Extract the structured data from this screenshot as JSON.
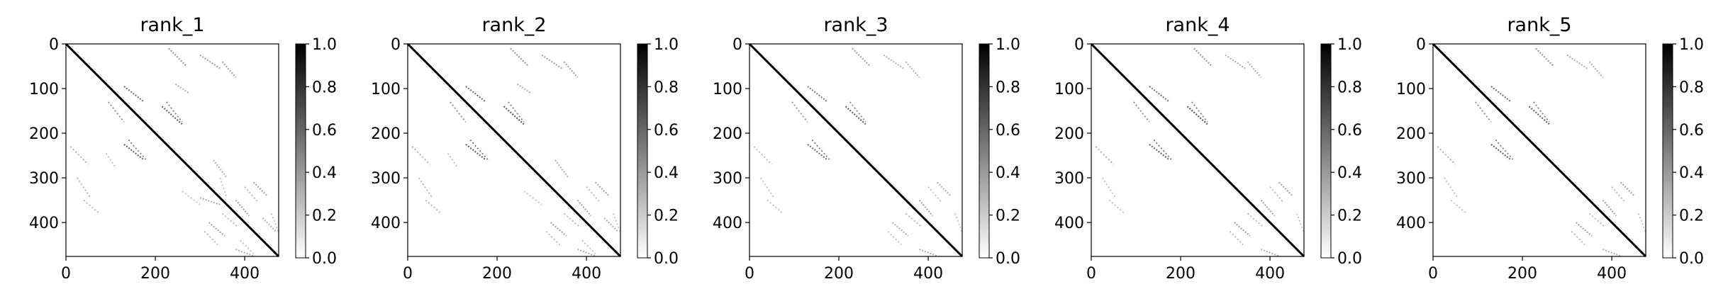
{
  "chart_data": [
    {
      "type": "heatmap",
      "title": "rank_1",
      "xlabel": "",
      "ylabel": "",
      "xlim": [
        0,
        476
      ],
      "ylim": [
        476,
        0
      ],
      "xticks": [
        0,
        200,
        400
      ],
      "yticks": [
        0,
        100,
        200,
        300,
        400
      ],
      "colorbar": {
        "ticks": [
          "0.0",
          "0.2",
          "0.4",
          "0.6",
          "0.8",
          "1.0"
        ],
        "range": [
          0,
          1
        ]
      },
      "structure": {
        "diagonal": [
          0,
          476
        ],
        "contacts": [
          {
            "from": [
              130,
              175
            ],
            "to": [
              95,
              130
            ],
            "v": 0.55
          },
          {
            "from": [
              215,
              260
            ],
            "to": [
              140,
              180
            ],
            "v": 0.6
          },
          {
            "from": [
              130,
              175
            ],
            "to": [
              225,
              260
            ],
            "v": 0.6
          },
          {
            "from": [
              230,
              270
            ],
            "to": [
              10,
              50
            ],
            "v": 0.4
          },
          {
            "from": [
              245,
              275
            ],
            "to": [
              90,
              110
            ],
            "v": 0.3
          },
          {
            "from": [
              300,
              345
            ],
            "to": [
              25,
              55
            ],
            "v": 0.35
          },
          {
            "from": [
              300,
              345
            ],
            "to": [
              345,
              360
            ],
            "v": 0.3
          },
          {
            "from": [
              350,
              380
            ],
            "to": [
              40,
              75
            ],
            "v": 0.35
          },
          {
            "from": [
              320,
              355
            ],
            "to": [
              400,
              430
            ],
            "v": 0.35
          },
          {
            "from": [
              330,
              360
            ],
            "to": [
              260,
              300
            ],
            "v": 0.3
          },
          {
            "from": [
              420,
              450
            ],
            "to": [
              310,
              340
            ],
            "v": 0.35
          },
          {
            "from": [
              440,
              470
            ],
            "to": [
              390,
              420
            ],
            "v": 0.3
          },
          {
            "from": [
              380,
              420
            ],
            "to": [
              460,
              475
            ],
            "v": 0.3
          },
          {
            "from": [
              380,
              410
            ],
            "to": [
              350,
              385
            ],
            "v": 0.35
          }
        ]
      }
    },
    {
      "type": "heatmap",
      "title": "rank_2",
      "xlabel": "",
      "ylabel": "",
      "xlim": [
        0,
        476
      ],
      "ylim": [
        476,
        0
      ],
      "xticks": [
        0,
        200,
        400
      ],
      "yticks": [
        0,
        100,
        200,
        300,
        400
      ],
      "colorbar": {
        "ticks": [
          "0.0",
          "0.2",
          "0.4",
          "0.6",
          "0.8",
          "1.0"
        ],
        "range": [
          0,
          1
        ]
      },
      "structure": {
        "diagonal": [
          0,
          476
        ],
        "contacts": [
          {
            "from": [
              130,
              175
            ],
            "to": [
              95,
              130
            ],
            "v": 0.55
          },
          {
            "from": [
              215,
              260
            ],
            "to": [
              140,
              180
            ],
            "v": 0.65
          },
          {
            "from": [
              130,
              175
            ],
            "to": [
              225,
              260
            ],
            "v": 0.6
          },
          {
            "from": [
              230,
              270
            ],
            "to": [
              10,
              50
            ],
            "v": 0.4
          },
          {
            "from": [
              245,
              275
            ],
            "to": [
              90,
              110
            ],
            "v": 0.3
          },
          {
            "from": [
              300,
              345
            ],
            "to": [
              25,
              55
            ],
            "v": 0.35
          },
          {
            "from": [
              350,
              380
            ],
            "to": [
              40,
              75
            ],
            "v": 0.35
          },
          {
            "from": [
              320,
              355
            ],
            "to": [
              400,
              430
            ],
            "v": 0.35
          },
          {
            "from": [
              330,
              360
            ],
            "to": [
              260,
              300
            ],
            "v": 0.3
          },
          {
            "from": [
              420,
              450
            ],
            "to": [
              310,
              340
            ],
            "v": 0.35
          },
          {
            "from": [
              440,
              470
            ],
            "to": [
              390,
              420
            ],
            "v": 0.3
          },
          {
            "from": [
              380,
              420
            ],
            "to": [
              460,
              475
            ],
            "v": 0.3
          },
          {
            "from": [
              380,
              410
            ],
            "to": [
              350,
              385
            ],
            "v": 0.35
          }
        ]
      }
    },
    {
      "type": "heatmap",
      "title": "rank_3",
      "xlabel": "",
      "ylabel": "",
      "xlim": [
        0,
        476
      ],
      "ylim": [
        476,
        0
      ],
      "xticks": [
        0,
        200,
        400
      ],
      "yticks": [
        0,
        100,
        200,
        300,
        400
      ],
      "colorbar": {
        "ticks": [
          "0.0",
          "0.2",
          "0.4",
          "0.6",
          "0.8",
          "1.0"
        ],
        "range": [
          0,
          1
        ]
      },
      "structure": {
        "diagonal": [
          0,
          476
        ],
        "contacts": [
          {
            "from": [
              130,
              175
            ],
            "to": [
              95,
              130
            ],
            "v": 0.5
          },
          {
            "from": [
              215,
              260
            ],
            "to": [
              140,
              180
            ],
            "v": 0.6
          },
          {
            "from": [
              130,
              175
            ],
            "to": [
              225,
              260
            ],
            "v": 0.55
          },
          {
            "from": [
              230,
              270
            ],
            "to": [
              10,
              50
            ],
            "v": 0.35
          },
          {
            "from": [
              300,
              345
            ],
            "to": [
              25,
              55
            ],
            "v": 0.3
          },
          {
            "from": [
              350,
              380
            ],
            "to": [
              40,
              75
            ],
            "v": 0.3
          },
          {
            "from": [
              320,
              355
            ],
            "to": [
              400,
              430
            ],
            "v": 0.3
          },
          {
            "from": [
              420,
              450
            ],
            "to": [
              310,
              340
            ],
            "v": 0.3
          },
          {
            "from": [
              380,
              420
            ],
            "to": [
              460,
              475
            ],
            "v": 0.3
          },
          {
            "from": [
              380,
              410
            ],
            "to": [
              350,
              385
            ],
            "v": 0.35
          }
        ]
      }
    },
    {
      "type": "heatmap",
      "title": "rank_4",
      "xlabel": "",
      "ylabel": "",
      "xlim": [
        0,
        476
      ],
      "ylim": [
        476,
        0
      ],
      "xticks": [
        0,
        200,
        400
      ],
      "yticks": [
        0,
        100,
        200,
        300,
        400
      ],
      "colorbar": {
        "ticks": [
          "0.0",
          "0.2",
          "0.4",
          "0.6",
          "0.8",
          "1.0"
        ],
        "range": [
          0,
          1
        ]
      },
      "structure": {
        "diagonal": [
          0,
          476
        ],
        "contacts": [
          {
            "from": [
              130,
              175
            ],
            "to": [
              95,
              130
            ],
            "v": 0.55
          },
          {
            "from": [
              215,
              260
            ],
            "to": [
              140,
              180
            ],
            "v": 0.65
          },
          {
            "from": [
              130,
              175
            ],
            "to": [
              225,
              260
            ],
            "v": 0.6
          },
          {
            "from": [
              230,
              270
            ],
            "to": [
              10,
              50
            ],
            "v": 0.4
          },
          {
            "from": [
              300,
              345
            ],
            "to": [
              25,
              55
            ],
            "v": 0.3
          },
          {
            "from": [
              350,
              380
            ],
            "to": [
              40,
              75
            ],
            "v": 0.3
          },
          {
            "from": [
              320,
              355
            ],
            "to": [
              400,
              430
            ],
            "v": 0.35
          },
          {
            "from": [
              420,
              450
            ],
            "to": [
              310,
              340
            ],
            "v": 0.35
          },
          {
            "from": [
              380,
              420
            ],
            "to": [
              460,
              475
            ],
            "v": 0.3
          },
          {
            "from": [
              380,
              410
            ],
            "to": [
              350,
              385
            ],
            "v": 0.35
          }
        ]
      }
    },
    {
      "type": "heatmap",
      "title": "rank_5",
      "xlabel": "",
      "ylabel": "",
      "xlim": [
        0,
        476
      ],
      "ylim": [
        476,
        0
      ],
      "xticks": [
        0,
        200,
        400
      ],
      "yticks": [
        0,
        100,
        200,
        300,
        400
      ],
      "colorbar": {
        "ticks": [
          "0.0",
          "0.2",
          "0.4",
          "0.6",
          "0.8",
          "1.0"
        ],
        "range": [
          0,
          1
        ]
      },
      "structure": {
        "diagonal": [
          0,
          476
        ],
        "contacts": [
          {
            "from": [
              130,
              175
            ],
            "to": [
              95,
              130
            ],
            "v": 0.55
          },
          {
            "from": [
              215,
              260
            ],
            "to": [
              140,
              180
            ],
            "v": 0.6
          },
          {
            "from": [
              130,
              175
            ],
            "to": [
              225,
              260
            ],
            "v": 0.6
          },
          {
            "from": [
              230,
              270
            ],
            "to": [
              10,
              50
            ],
            "v": 0.4
          },
          {
            "from": [
              300,
              345
            ],
            "to": [
              25,
              55
            ],
            "v": 0.3
          },
          {
            "from": [
              350,
              380
            ],
            "to": [
              40,
              75
            ],
            "v": 0.3
          },
          {
            "from": [
              320,
              355
            ],
            "to": [
              400,
              430
            ],
            "v": 0.35
          },
          {
            "from": [
              420,
              450
            ],
            "to": [
              310,
              340
            ],
            "v": 0.35
          },
          {
            "from": [
              380,
              420
            ],
            "to": [
              460,
              475
            ],
            "v": 0.3
          },
          {
            "from": [
              380,
              410
            ],
            "to": [
              350,
              385
            ],
            "v": 0.35
          }
        ]
      }
    }
  ]
}
